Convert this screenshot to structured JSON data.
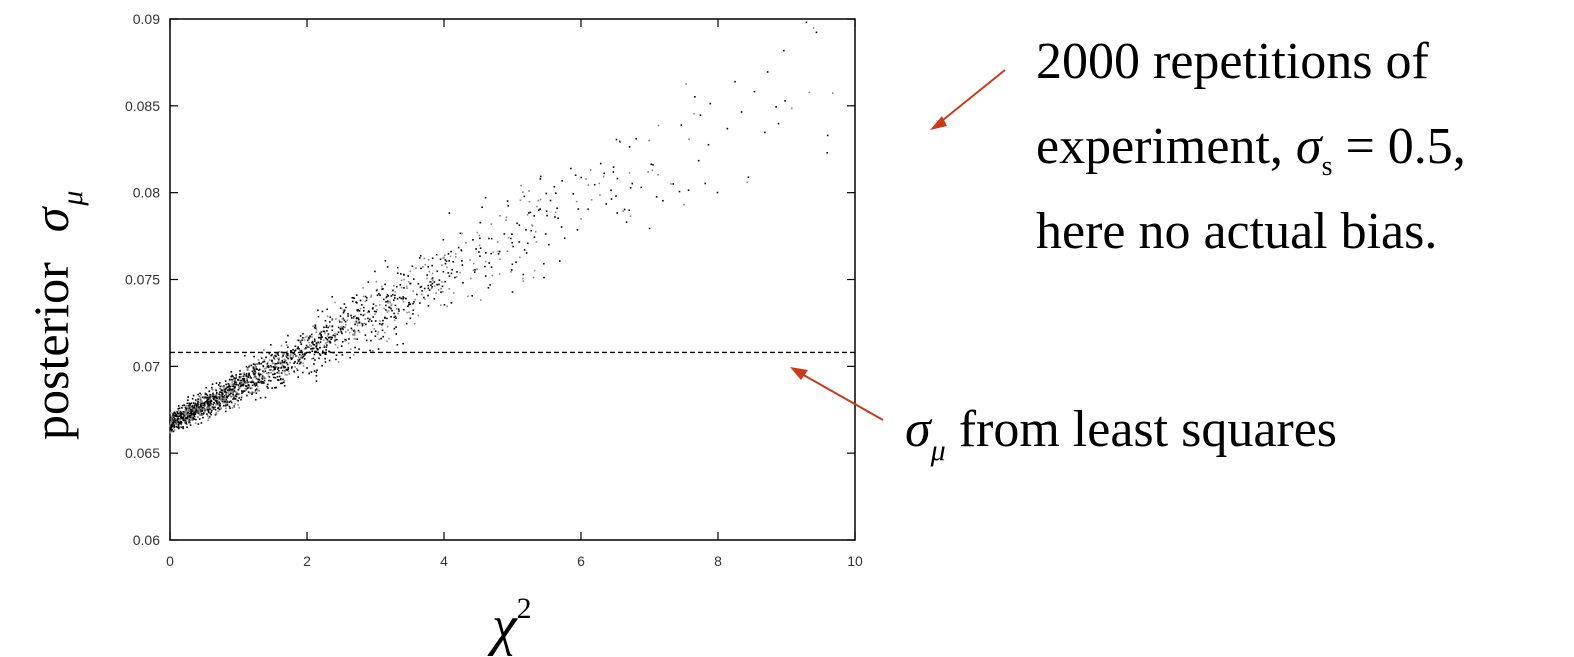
{
  "chart_data": {
    "type": "scatter",
    "title": "",
    "xlabel": {
      "symbol": "χ",
      "superscript": "2"
    },
    "ylabel": {
      "word": "posterior",
      "symbol": "σ",
      "subscript": "μ"
    },
    "xlim": [
      0,
      10
    ],
    "ylim": [
      0.06,
      0.09
    ],
    "x_ticks": [
      "0",
      "2",
      "4",
      "6",
      "8",
      "10"
    ],
    "y_ticks": [
      "0.06",
      "0.065",
      "0.07",
      "0.075",
      "0.08",
      "0.085",
      "0.09"
    ],
    "x_tick_values": [
      0,
      2,
      4,
      6,
      8,
      10
    ],
    "y_tick_values": [
      0.06,
      0.065,
      0.07,
      0.075,
      0.08,
      0.085,
      0.09
    ],
    "grid": false,
    "reference_line": {
      "y": 0.0708,
      "style": "dashed"
    },
    "series": [
      {
        "n_points": 2000,
        "trend_samples": {
          "x": [
            0,
            1,
            2,
            3,
            4,
            5,
            6,
            7,
            8,
            9,
            10
          ],
          "y": [
            0.0667,
            0.0688,
            0.0709,
            0.0731,
            0.0752,
            0.0773,
            0.0794,
            0.0815,
            0.0836,
            0.0857,
            0.0878
          ]
        },
        "color": "#000000"
      }
    ]
  },
  "annotations": {
    "top": {
      "line1": "2000 repetitions of",
      "line2_prefix": "experiment, ",
      "sigma": "σ",
      "sigma_sub": "s",
      "line2_suffix": " = 0.5,",
      "line3": "here no actual bias."
    },
    "bottom": {
      "sigma": "σ",
      "sigma_sub": "μ",
      "suffix": " from least squares"
    },
    "arrow_color": "#cc3a1a"
  }
}
